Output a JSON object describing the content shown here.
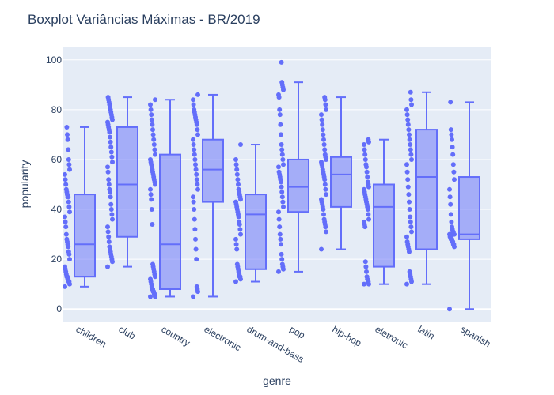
{
  "chart_data": {
    "type": "box",
    "title": "Boxplot Variâncias Máximas - BR/2019",
    "xlabel": "genre",
    "ylabel": "popularity",
    "ylim": [
      -5,
      105
    ],
    "yticks": [
      0,
      20,
      40,
      60,
      80,
      100
    ],
    "grid": true,
    "colors": {
      "box_line": "#636efa",
      "box_fill": "rgba(99,110,250,0.5)",
      "plot_bg": "#e5ecf6",
      "text": "#2a3f5f"
    },
    "categories": [
      "children",
      "club",
      "country",
      "electronic",
      "drum-and-bass",
      "pop",
      "hip-hop",
      "eletronic",
      "latin",
      "spanish"
    ],
    "boxes": [
      {
        "genre": "children",
        "min": 9,
        "q1": 13,
        "median": 26,
        "q3": 46,
        "max": 73,
        "points": [
          9,
          10,
          11,
          11,
          12,
          12,
          13,
          13,
          14,
          15,
          16,
          17,
          20,
          22,
          23,
          25,
          26,
          27,
          28,
          30,
          33,
          35,
          37,
          39,
          41,
          43,
          45,
          45,
          46,
          47,
          48,
          50,
          52,
          54,
          56,
          58,
          60,
          64,
          68,
          70,
          73
        ]
      },
      {
        "genre": "club",
        "min": 17,
        "q1": 29,
        "median": 50,
        "q3": 73,
        "max": 85,
        "points": [
          17,
          19,
          20,
          21,
          22,
          23,
          24,
          25,
          27,
          29,
          31,
          33,
          36,
          38,
          40,
          42,
          45,
          47,
          48,
          50,
          52,
          55,
          57,
          59,
          61,
          63,
          65,
          67,
          69,
          71,
          72,
          73,
          74,
          75,
          76,
          77,
          78,
          79,
          80,
          81,
          82,
          83,
          84,
          85
        ]
      },
      {
        "genre": "country",
        "min": 5,
        "q1": 8,
        "median": 26,
        "q3": 62,
        "max": 84,
        "points": [
          5,
          5,
          6,
          6,
          7,
          7,
          8,
          8,
          9,
          10,
          11,
          12,
          13,
          14,
          15,
          16,
          17,
          18,
          34,
          40,
          44,
          46,
          48,
          50,
          51,
          52,
          53,
          54,
          55,
          56,
          57,
          58,
          59,
          60,
          62,
          64,
          66,
          68,
          70,
          72,
          74,
          76,
          78,
          80,
          82,
          84
        ]
      },
      {
        "genre": "electronic",
        "min": 5,
        "q1": 43,
        "median": 56,
        "q3": 68,
        "max": 86,
        "points": [
          5,
          7,
          8,
          9,
          20,
          24,
          28,
          32,
          36,
          40,
          43,
          45,
          48,
          50,
          52,
          54,
          56,
          58,
          60,
          62,
          64,
          66,
          68,
          70,
          72,
          74,
          75,
          76,
          77,
          78,
          79,
          80,
          82,
          84,
          86
        ]
      },
      {
        "genre": "drum-and-bass",
        "min": 11,
        "q1": 16,
        "median": 38,
        "q3": 46,
        "max": 66,
        "points": [
          11,
          12,
          13,
          13,
          14,
          15,
          16,
          17,
          18,
          24,
          26,
          28,
          30,
          32,
          34,
          35,
          37,
          38,
          39,
          40,
          41,
          42,
          43,
          44,
          45,
          46,
          47,
          48,
          50,
          52,
          54,
          56,
          58,
          60,
          66
        ]
      },
      {
        "genre": "pop",
        "min": 15,
        "q1": 39,
        "median": 49,
        "q3": 60,
        "max": 91,
        "points": [
          15,
          16,
          17,
          18,
          20,
          22,
          26,
          28,
          30,
          33,
          36,
          39,
          41,
          43,
          45,
          47,
          49,
          51,
          52,
          53,
          54,
          55,
          57,
          58,
          60,
          62,
          64,
          66,
          70,
          74,
          78,
          80,
          85,
          86,
          88,
          89,
          90,
          91,
          99
        ]
      },
      {
        "genre": "hip-hop",
        "min": 24,
        "q1": 41,
        "median": 54,
        "q3": 61,
        "max": 85,
        "points": [
          24,
          31,
          33,
          34,
          35,
          36,
          38,
          40,
          41,
          42,
          43,
          44,
          46,
          48,
          50,
          52,
          53,
          54,
          55,
          56,
          57,
          58,
          59,
          60,
          61,
          62,
          64,
          66,
          68,
          70,
          72,
          74,
          76,
          78,
          80,
          82,
          84,
          85
        ]
      },
      {
        "genre": "eletronic",
        "min": 10,
        "q1": 17,
        "median": 41,
        "q3": 50,
        "max": 68,
        "points": [
          10,
          10,
          11,
          11,
          12,
          13,
          15,
          17,
          19,
          33,
          34,
          35,
          36,
          38,
          40,
          41,
          42,
          43,
          44,
          45,
          46,
          47,
          48,
          49,
          50,
          51,
          53,
          55,
          57,
          58,
          60,
          62,
          64,
          66,
          67,
          68
        ]
      },
      {
        "genre": "latin",
        "min": 10,
        "q1": 24,
        "median": 53,
        "q3": 72,
        "max": 87,
        "points": [
          10,
          11,
          12,
          13,
          14,
          15,
          23,
          24,
          25,
          26,
          27,
          29,
          31,
          33,
          35,
          37,
          40,
          43,
          46,
          49,
          52,
          55,
          58,
          60,
          62,
          64,
          66,
          68,
          70,
          72,
          74,
          76,
          78,
          80,
          82,
          84,
          87
        ]
      },
      {
        "genre": "spanish",
        "min": 0,
        "q1": 28,
        "median": 30,
        "q3": 53,
        "max": 83,
        "points": [
          0,
          25,
          26,
          26,
          27,
          27,
          28,
          28,
          28,
          29,
          29,
          30,
          30,
          30,
          31,
          31,
          32,
          33,
          35,
          38,
          42,
          45,
          48,
          52,
          55,
          58,
          62,
          65,
          68,
          70,
          72,
          83
        ]
      }
    ]
  }
}
